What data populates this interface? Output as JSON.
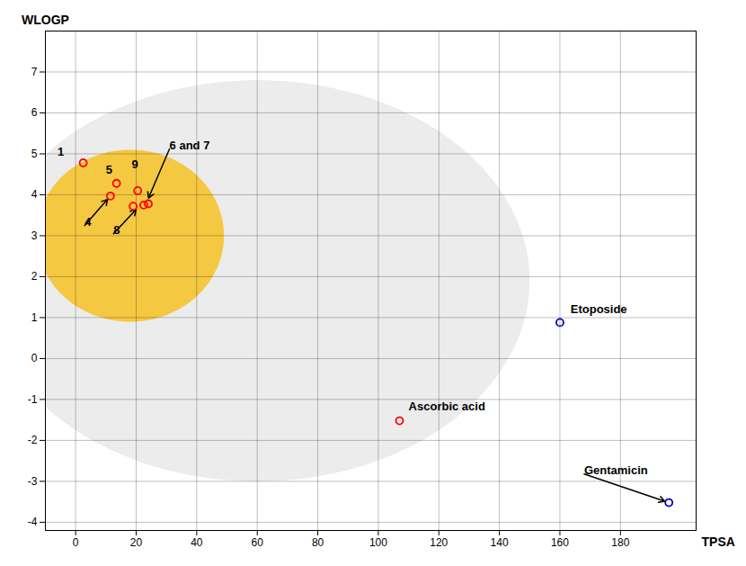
{
  "chart_data": {
    "type": "scatter",
    "xlabel": "TPSA",
    "ylabel": "WLOGP",
    "xlim": [
      -10,
      205
    ],
    "ylim": [
      -4.2,
      8.0
    ],
    "xticks": [
      0,
      20,
      40,
      60,
      80,
      100,
      120,
      140,
      160,
      180
    ],
    "yticks": [
      -4,
      -3,
      -2,
      -1,
      0,
      1,
      2,
      3,
      4,
      5,
      6,
      7
    ],
    "grid": true,
    "ellipses": [
      {
        "center_x": 60.0,
        "center_y": 1.9,
        "width": 180.0,
        "height": 9.8,
        "color": "#ececec"
      },
      {
        "center_x": 18.0,
        "center_y": 3.0,
        "width": 62.0,
        "height": 4.2,
        "color": "#f5c842"
      }
    ],
    "series": [
      {
        "color": "#ff0000",
        "marker": "open_circle",
        "x": [
          2.5,
          13.5,
          11.5,
          20.5,
          24.0,
          22.5,
          19.0,
          107.0
        ],
        "values": [
          4.78,
          4.28,
          3.97,
          4.1,
          3.78,
          3.75,
          3.72,
          -1.52
        ]
      },
      {
        "color": "#0000cc",
        "marker": "open_circle",
        "x": [
          160.0,
          196.0
        ],
        "values": [
          0.88,
          -3.52
        ]
      }
    ],
    "annotations": [
      {
        "text": "1",
        "x": -6.0,
        "y": 4.95
      },
      {
        "text": "5",
        "x": 10.0,
        "y": 4.52
      },
      {
        "text": "4",
        "x": 3.0,
        "y": 3.25,
        "arrow_x": 11.5,
        "arrow_y": 3.97
      },
      {
        "text": "9",
        "x": 18.5,
        "y": 4.65
      },
      {
        "text": "6 and 7",
        "x": 31.0,
        "y": 5.12,
        "arrow_x": 23.5,
        "arrow_y": 3.82
      },
      {
        "text": "8",
        "x": 12.5,
        "y": 3.05,
        "arrow_x": 21.0,
        "arrow_y": 3.72
      },
      {
        "text": "Ascorbic acid",
        "x": 110.0,
        "y": -1.27
      },
      {
        "text": "Etoposide",
        "x": 163.5,
        "y": 1.1
      },
      {
        "text": "Gentamicin",
        "x": 168.0,
        "y": -2.82,
        "arrow_x": 196.0,
        "arrow_y": -3.52
      }
    ]
  }
}
